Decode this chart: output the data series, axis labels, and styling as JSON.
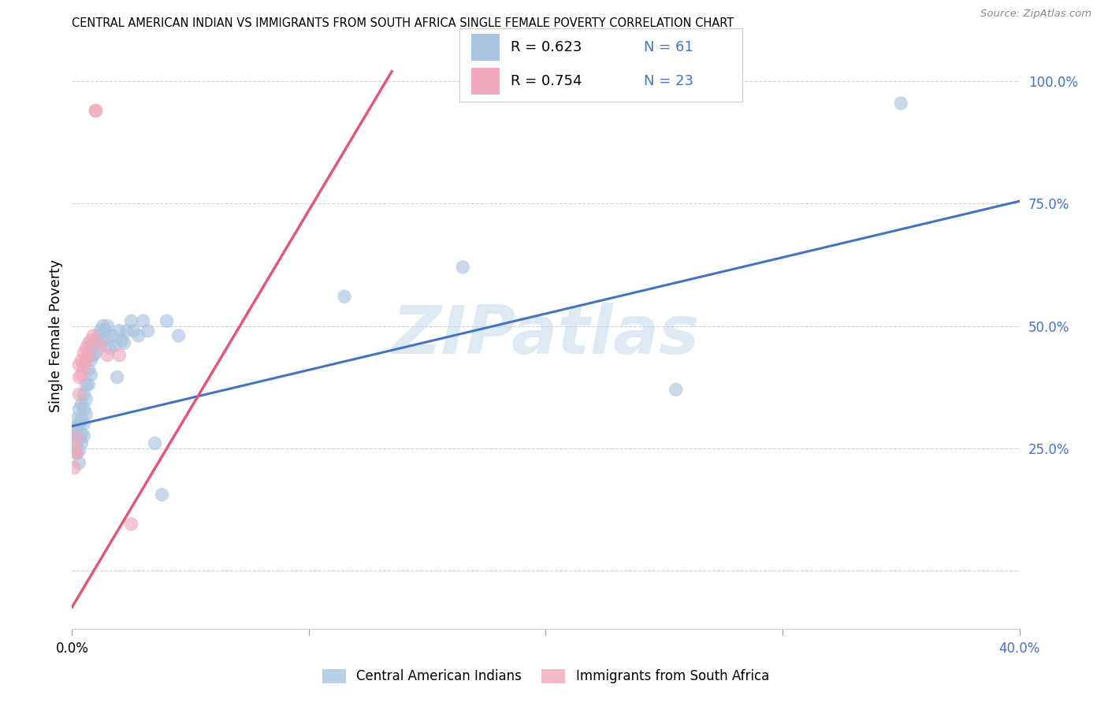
{
  "title": "CENTRAL AMERICAN INDIAN VS IMMIGRANTS FROM SOUTH AFRICA SINGLE FEMALE POVERTY CORRELATION CHART",
  "source": "Source: ZipAtlas.com",
  "ylabel": "Single Female Poverty",
  "blue_color": "#a8c4e0",
  "pink_color": "#f0a8bc",
  "blue_line_color": "#4472c4",
  "pink_line_color": "#e05878",
  "watermark": "ZIPatlas",
  "xmin": 0.0,
  "xmax": 0.4,
  "ymin": -0.12,
  "ymax": 1.08,
  "ytick_positions": [
    0.0,
    0.25,
    0.5,
    0.75,
    1.0
  ],
  "ytick_labels": [
    "",
    "25.0%",
    "50.0%",
    "75.0%",
    "100.0%"
  ],
  "xtick_positions": [
    0.0,
    0.1,
    0.2,
    0.3,
    0.4
  ],
  "blue_points_x": [
    0.001,
    0.001,
    0.002,
    0.002,
    0.002,
    0.002,
    0.003,
    0.003,
    0.003,
    0.003,
    0.003,
    0.004,
    0.004,
    0.004,
    0.004,
    0.005,
    0.005,
    0.005,
    0.005,
    0.006,
    0.006,
    0.006,
    0.007,
    0.007,
    0.007,
    0.008,
    0.008,
    0.008,
    0.009,
    0.009,
    0.01,
    0.01,
    0.011,
    0.012,
    0.012,
    0.013,
    0.013,
    0.014,
    0.015,
    0.015,
    0.016,
    0.017,
    0.018,
    0.019,
    0.02,
    0.021,
    0.022,
    0.023,
    0.025,
    0.026,
    0.028,
    0.03,
    0.032,
    0.035,
    0.038,
    0.04,
    0.045,
    0.115,
    0.165,
    0.255,
    0.35
  ],
  "blue_points_y": [
    0.29,
    0.275,
    0.31,
    0.285,
    0.26,
    0.24,
    0.33,
    0.3,
    0.27,
    0.245,
    0.22,
    0.34,
    0.31,
    0.28,
    0.26,
    0.36,
    0.33,
    0.3,
    0.275,
    0.38,
    0.35,
    0.32,
    0.44,
    0.41,
    0.38,
    0.45,
    0.43,
    0.4,
    0.46,
    0.44,
    0.47,
    0.445,
    0.48,
    0.49,
    0.46,
    0.5,
    0.47,
    0.49,
    0.5,
    0.475,
    0.455,
    0.48,
    0.46,
    0.395,
    0.49,
    0.47,
    0.465,
    0.49,
    0.51,
    0.49,
    0.48,
    0.51,
    0.49,
    0.26,
    0.155,
    0.51,
    0.48,
    0.56,
    0.62,
    0.37,
    0.955
  ],
  "pink_points_x": [
    0.001,
    0.001,
    0.002,
    0.002,
    0.003,
    0.003,
    0.003,
    0.004,
    0.004,
    0.005,
    0.005,
    0.006,
    0.006,
    0.007,
    0.007,
    0.008,
    0.009,
    0.01,
    0.01,
    0.012,
    0.015,
    0.02,
    0.025
  ],
  "pink_points_y": [
    0.245,
    0.21,
    0.27,
    0.24,
    0.42,
    0.395,
    0.36,
    0.43,
    0.4,
    0.445,
    0.415,
    0.455,
    0.43,
    0.465,
    0.44,
    0.47,
    0.48,
    0.94,
    0.94,
    0.46,
    0.44,
    0.44,
    0.095
  ],
  "blue_line_x": [
    0.0,
    0.4
  ],
  "blue_line_y": [
    0.295,
    0.755
  ],
  "pink_line_x": [
    0.0,
    0.135
  ],
  "pink_line_y": [
    -0.075,
    1.02
  ]
}
